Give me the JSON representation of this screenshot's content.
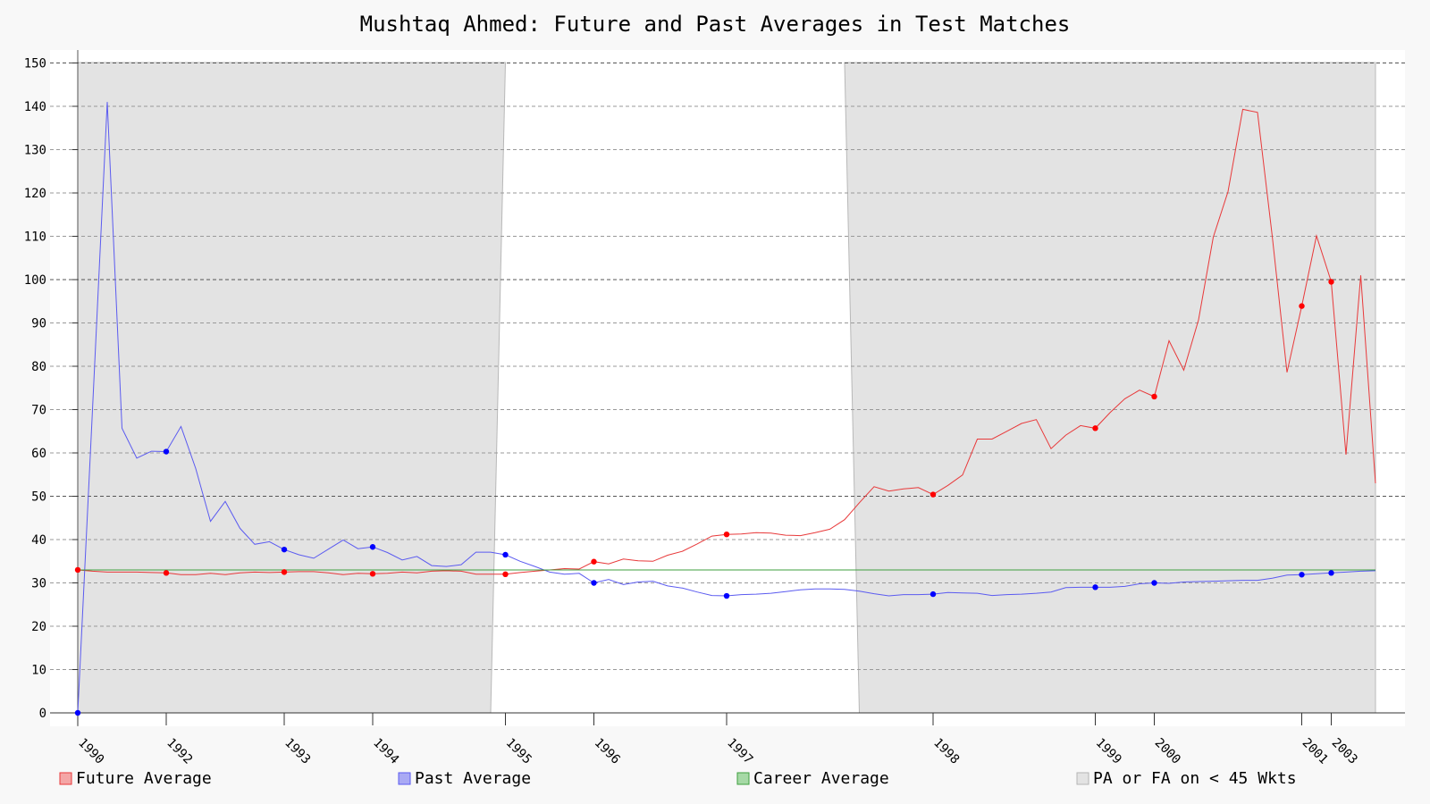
{
  "chart_data": {
    "type": "line",
    "title": "Mushtaq Ahmed: Future and Past Averages in Test Matches",
    "xlabel": "",
    "ylabel": "",
    "ylim": [
      0,
      150
    ],
    "yticks": [
      0,
      10,
      20,
      30,
      40,
      50,
      60,
      70,
      80,
      90,
      100,
      110,
      120,
      130,
      140,
      150
    ],
    "grid": true,
    "legend_position": "bottom",
    "n_points": 89,
    "x_tick_labels": [
      {
        "label": "1990",
        "index": 0
      },
      {
        "label": "1992",
        "index": 6
      },
      {
        "label": "1993",
        "index": 14
      },
      {
        "label": "1994",
        "index": 20
      },
      {
        "label": "1995",
        "index": 29
      },
      {
        "label": "1996",
        "index": 35
      },
      {
        "label": "1997",
        "index": 44
      },
      {
        "label": "1998",
        "index": 58
      },
      {
        "label": "1999",
        "index": 69
      },
      {
        "label": "2000",
        "index": 73
      },
      {
        "label": "2001",
        "index": 83
      },
      {
        "label": "2003",
        "index": 85
      }
    ],
    "shaded_regions": [
      {
        "label": "PA or FA on < 45 Wkts",
        "start_top": 0,
        "start_bottom": 0,
        "end_top": 29,
        "end_bottom": 28
      },
      {
        "label": "PA or FA on < 45 Wkts",
        "start_top": 52,
        "start_bottom": 53,
        "end_top": 88,
        "end_bottom": 88
      }
    ],
    "series": [
      {
        "name": "Future Average",
        "color": "#e8393a",
        "marker_color": "#ff0000",
        "markers": [
          0,
          6,
          14,
          20,
          29,
          35,
          44,
          58,
          69,
          73,
          83,
          85
        ],
        "values": [
          33,
          32.7,
          32.5,
          32.5,
          32.5,
          32.4,
          32.3,
          31.9,
          31.9,
          32.2,
          31.9,
          32.3,
          32.5,
          32.4,
          32.5,
          32.6,
          32.6,
          32.3,
          31.9,
          32.2,
          32.1,
          32.2,
          32.5,
          32.3,
          32.7,
          32.8,
          32.7,
          32,
          32,
          32,
          32.4,
          32.7,
          33,
          33.3,
          33.2,
          34.9,
          34.4,
          35.5,
          35.1,
          35,
          36.4,
          37.3,
          39,
          40.8,
          41.2,
          41.3,
          41.6,
          41.5,
          41,
          40.9,
          41.6,
          42.4,
          44.6,
          48.5,
          52.2,
          51.2,
          51.7,
          52,
          50.4,
          52.5,
          54.9,
          63.2,
          63.2,
          65,
          66.8,
          67.7,
          61,
          64.1,
          66.3,
          65.7,
          69.3,
          72.5,
          74.5,
          73,
          85.9,
          79.1,
          90.7,
          109.8,
          120.3,
          139.3,
          138.6,
          110,
          78.6,
          93.9,
          110.1,
          99.5,
          59.6,
          101,
          53
        ]
      },
      {
        "name": "Past Average",
        "color": "#5b5bf0",
        "marker_color": "#0000ff",
        "markers": [
          0,
          6,
          14,
          20,
          29,
          35,
          44,
          58,
          69,
          73,
          83,
          85
        ],
        "values": [
          0,
          70,
          141,
          65.7,
          58.8,
          60.4,
          60.3,
          66.1,
          56.4,
          44.2,
          48.8,
          42.6,
          38.9,
          39.5,
          37.7,
          36.5,
          35.7,
          37.8,
          39.9,
          37.9,
          38.3,
          37,
          35.3,
          36.1,
          34,
          33.8,
          34.2,
          37.1,
          37.1,
          36.5,
          35,
          33.8,
          32.5,
          32,
          32.2,
          30,
          30.8,
          29.6,
          30.2,
          30.4,
          29.3,
          28.8,
          27.9,
          27.1,
          27,
          27.3,
          27.4,
          27.6,
          28,
          28.4,
          28.6,
          28.6,
          28.5,
          28.1,
          27.5,
          27,
          27.3,
          27.3,
          27.4,
          27.8,
          27.7,
          27.6,
          27.1,
          27.3,
          27.4,
          27.6,
          27.9,
          28.9,
          29,
          29,
          29,
          29.2,
          29.8,
          30,
          29.9,
          30.2,
          30.3,
          30.4,
          30.5,
          30.6,
          30.6,
          31.1,
          31.8,
          31.9,
          32.1,
          32.3,
          32.5,
          32.7,
          32.8
        ]
      },
      {
        "name": "Career Average",
        "color": "#3f9f3f",
        "markers": [],
        "values": [
          33,
          33
        ]
      }
    ],
    "legend": [
      {
        "label": "Future Average",
        "swatch_fill": "#f4a6a6",
        "swatch_stroke": "#e8393a"
      },
      {
        "label": "Past Average",
        "swatch_fill": "#a9a9f4",
        "swatch_stroke": "#5b5bf0"
      },
      {
        "label": "Career Average",
        "swatch_fill": "#a6d9a6",
        "swatch_stroke": "#3f9f3f"
      },
      {
        "label": "PA or FA on < 45 Wkts",
        "swatch_fill": "#e3e3e3",
        "swatch_stroke": "#b5b5b5"
      }
    ]
  }
}
